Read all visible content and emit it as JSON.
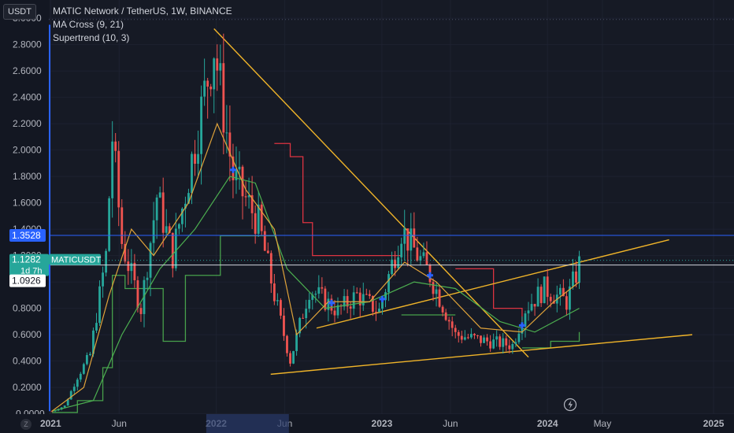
{
  "header": {
    "currency_button": "USDT",
    "title": "MATIC Network / TetherUS, 1W, BINANCE",
    "indicators": [
      "MA Cross (9, 21)",
      "Supertrend (10, 3)"
    ],
    "reset_button": "Z"
  },
  "colors": {
    "background": "#131722",
    "up": "#26a69a",
    "down": "#ef5350",
    "trendline": "#f0b429",
    "ma_fast": "#e0a33a",
    "ma_slow": "#4caf50",
    "supertrend_up": "#4caf50",
    "supertrend_down": "#f23645",
    "price_line": "#2962ff",
    "current_price": "#26a69a"
  },
  "chart_data": {
    "type": "candlestick",
    "symbol": "MATICUSDT",
    "y_ticks": [
      "3.0000",
      "2.8000",
      "2.6000",
      "2.4000",
      "2.2000",
      "2.0000",
      "1.8000",
      "1.6000",
      "1.4000",
      "1.2000",
      "1.0000",
      "0.8000",
      "0.6000",
      "0.4000",
      "0.2000",
      "-0.0000"
    ],
    "y_tick_values": [
      3.0,
      2.8,
      2.6,
      2.4,
      2.2,
      2.0,
      1.8,
      1.6,
      1.4,
      1.2,
      1.0,
      0.8,
      0.6,
      0.4,
      0.2,
      0.0
    ],
    "ylim": [
      -0.05,
      3.2
    ],
    "x_ticks": [
      "2021",
      "Jun",
      "2022",
      "Jun",
      "2023",
      "Jun",
      "2024",
      "May",
      "2025"
    ],
    "x_tick_dates": [
      "2021-01-01",
      "2021-06-01",
      "2022-01-01",
      "2022-06-01",
      "2023-01-01",
      "2023-06-01",
      "2024-01-01",
      "2024-05-01",
      "2025-01-01"
    ],
    "xlim": [
      "2020-12-28",
      "2025-02-15"
    ],
    "price_labels": {
      "horizontal_line": {
        "label": "1.3528",
        "value": 1.3528
      },
      "current": {
        "label": "1.1282",
        "symbol": "MATICUSDT",
        "countdown": "1d 7h",
        "value": 1.1282
      },
      "secondary": {
        "label": "1.0926",
        "value": 1.0926
      }
    },
    "trendlines": [
      {
        "from": {
          "date": "2021-12-27",
          "price": 2.92
        },
        "to": {
          "date": "2023-11-20",
          "price": 0.43
        }
      },
      {
        "from": {
          "date": "2022-05-01",
          "price": 0.3
        },
        "to": {
          "date": "2024-11-15",
          "price": 0.6
        }
      },
      {
        "from": {
          "date": "2022-08-10",
          "price": 0.65
        },
        "to": {
          "date": "2024-09-25",
          "price": 1.32
        }
      }
    ],
    "weekly_close_path": [
      {
        "date": "2021-01-04",
        "price": 0.02
      },
      {
        "date": "2021-02-01",
        "price": 0.06
      },
      {
        "date": "2021-03-01",
        "price": 0.28
      },
      {
        "date": "2021-03-29",
        "price": 0.45
      },
      {
        "date": "2021-05-03",
        "price": 1.2
      },
      {
        "date": "2021-05-17",
        "price": 2.1
      },
      {
        "date": "2021-06-07",
        "price": 1.3
      },
      {
        "date": "2021-07-19",
        "price": 0.8
      },
      {
        "date": "2021-08-23",
        "price": 1.65
      },
      {
        "date": "2021-09-27",
        "price": 1.2
      },
      {
        "date": "2021-11-01",
        "price": 1.8
      },
      {
        "date": "2021-12-27",
        "price": 2.8
      },
      {
        "date": "2022-02-07",
        "price": 1.8
      },
      {
        "date": "2022-04-04",
        "price": 1.45
      },
      {
        "date": "2022-05-09",
        "price": 0.9
      },
      {
        "date": "2022-06-13",
        "price": 0.4
      },
      {
        "date": "2022-07-25",
        "price": 0.95
      },
      {
        "date": "2022-09-26",
        "price": 0.78
      },
      {
        "date": "2022-11-07",
        "price": 0.9
      },
      {
        "date": "2022-12-26",
        "price": 0.78
      },
      {
        "date": "2023-02-13",
        "price": 1.4
      },
      {
        "date": "2023-04-17",
        "price": 1.05
      },
      {
        "date": "2023-06-12",
        "price": 0.6
      },
      {
        "date": "2023-08-21",
        "price": 0.55
      },
      {
        "date": "2023-10-16",
        "price": 0.52
      },
      {
        "date": "2023-11-13",
        "price": 0.8
      },
      {
        "date": "2023-12-25",
        "price": 0.95
      },
      {
        "date": "2024-02-12",
        "price": 0.85
      },
      {
        "date": "2024-03-11",
        "price": 1.13
      }
    ],
    "ma_fast_path": [
      {
        "date": "2021-01-04",
        "price": 0.02
      },
      {
        "date": "2021-03-15",
        "price": 0.2
      },
      {
        "date": "2021-05-10",
        "price": 0.9
      },
      {
        "date": "2021-06-28",
        "price": 1.4
      },
      {
        "date": "2021-08-16",
        "price": 1.2
      },
      {
        "date": "2021-11-01",
        "price": 1.6
      },
      {
        "date": "2022-01-03",
        "price": 2.2
      },
      {
        "date": "2022-03-07",
        "price": 1.7
      },
      {
        "date": "2022-05-09",
        "price": 1.4
      },
      {
        "date": "2022-06-27",
        "price": 0.6
      },
      {
        "date": "2022-09-05",
        "price": 0.85
      },
      {
        "date": "2022-12-05",
        "price": 0.85
      },
      {
        "date": "2023-02-20",
        "price": 1.15
      },
      {
        "date": "2023-05-01",
        "price": 1.0
      },
      {
        "date": "2023-08-07",
        "price": 0.65
      },
      {
        "date": "2023-11-06",
        "price": 0.62
      },
      {
        "date": "2024-01-15",
        "price": 0.85
      },
      {
        "date": "2024-03-11",
        "price": 1.0
      }
    ],
    "ma_slow_path": [
      {
        "date": "2021-01-04",
        "price": 0.02
      },
      {
        "date": "2021-04-05",
        "price": 0.1
      },
      {
        "date": "2021-06-07",
        "price": 0.6
      },
      {
        "date": "2021-08-30",
        "price": 1.1
      },
      {
        "date": "2021-11-15",
        "price": 1.4
      },
      {
        "date": "2022-01-31",
        "price": 1.8
      },
      {
        "date": "2022-03-28",
        "price": 1.75
      },
      {
        "date": "2022-06-06",
        "price": 1.1
      },
      {
        "date": "2022-08-29",
        "price": 0.8
      },
      {
        "date": "2022-12-05",
        "price": 0.85
      },
      {
        "date": "2023-03-13",
        "price": 1.0
      },
      {
        "date": "2023-06-12",
        "price": 0.95
      },
      {
        "date": "2023-09-18",
        "price": 0.7
      },
      {
        "date": "2023-12-04",
        "price": 0.62
      },
      {
        "date": "2024-03-11",
        "price": 0.8
      }
    ],
    "ma_cross_markers": [
      {
        "date": "2022-02-07",
        "price": 1.85
      },
      {
        "date": "2022-09-12",
        "price": 0.84
      },
      {
        "date": "2023-01-02",
        "price": 0.87
      },
      {
        "date": "2023-04-17",
        "price": 1.05
      },
      {
        "date": "2023-11-06",
        "price": 0.67
      }
    ],
    "supertrend_segments": [
      {
        "trend": "up",
        "points": [
          {
            "date": "2021-01-04",
            "price": 0.01
          },
          {
            "date": "2021-03-01",
            "price": 0.1
          },
          {
            "date": "2021-04-26",
            "price": 0.35
          },
          {
            "date": "2021-05-17",
            "price": 1.05
          },
          {
            "date": "2021-06-14",
            "price": 0.95
          },
          {
            "date": "2021-08-16",
            "price": 0.95
          },
          {
            "date": "2021-09-06",
            "price": 0.55
          },
          {
            "date": "2021-10-04",
            "price": 0.55
          },
          {
            "date": "2021-10-25",
            "price": 1.05
          },
          {
            "date": "2021-12-27",
            "price": 1.05
          },
          {
            "date": "2022-01-10",
            "price": 1.35
          },
          {
            "date": "2022-05-09",
            "price": 1.35
          }
        ]
      },
      {
        "trend": "down",
        "points": [
          {
            "date": "2022-05-09",
            "price": 2.05
          },
          {
            "date": "2022-06-13",
            "price": 1.95
          },
          {
            "date": "2022-07-11",
            "price": 1.45
          },
          {
            "date": "2022-08-01",
            "price": 1.2
          },
          {
            "date": "2023-02-13",
            "price": 1.2
          }
        ]
      },
      {
        "trend": "up",
        "points": [
          {
            "date": "2023-02-13",
            "price": 0.75
          },
          {
            "date": "2023-06-12",
            "price": 0.75
          }
        ]
      },
      {
        "trend": "down",
        "points": [
          {
            "date": "2023-06-12",
            "price": 1.1
          },
          {
            "date": "2023-09-04",
            "price": 0.8
          },
          {
            "date": "2023-11-06",
            "price": 0.7
          }
        ]
      },
      {
        "trend": "up",
        "points": [
          {
            "date": "2023-11-06",
            "price": 0.5
          },
          {
            "date": "2024-01-08",
            "price": 0.55
          },
          {
            "date": "2024-03-11",
            "price": 0.62
          }
        ]
      }
    ]
  }
}
